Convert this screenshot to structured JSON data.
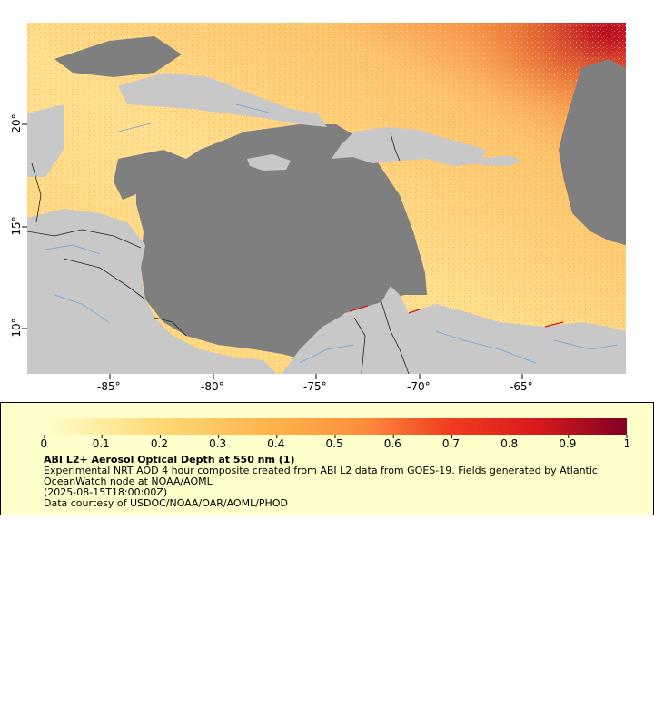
{
  "map": {
    "x_ticks": [
      "-85°",
      "-80°",
      "-75°",
      "-70°",
      "-65°"
    ],
    "y_ticks": [
      "20°",
      "15°",
      "10°"
    ],
    "colors": {
      "ocean_missing": "#7f7f7f",
      "land": "#c8c8c8",
      "border": "#000000",
      "rivers": "#6fa0d8",
      "aod_low": "#ffffcc",
      "aod_high": "#800026"
    }
  },
  "legend": {
    "colorbar_ticks": [
      "0",
      "0.1",
      "0.2",
      "0.3",
      "0.4",
      "0.5",
      "0.6",
      "0.7",
      "0.8",
      "0.9",
      "1"
    ],
    "title": "ABI L2+ Aerosol Optical Depth at 550 nm (1)",
    "line1": "Experimental NRT AOD 4 hour composite created from ABI L2 data from GOES-19. Fields generated by Atlantic OceanWatch node at NOAA/AOML",
    "line2": "(2025-08-15T18:00:00Z)",
    "line3": "Data courtesy of USDOC/NOAA/OAR/AOML/PHOD"
  }
}
